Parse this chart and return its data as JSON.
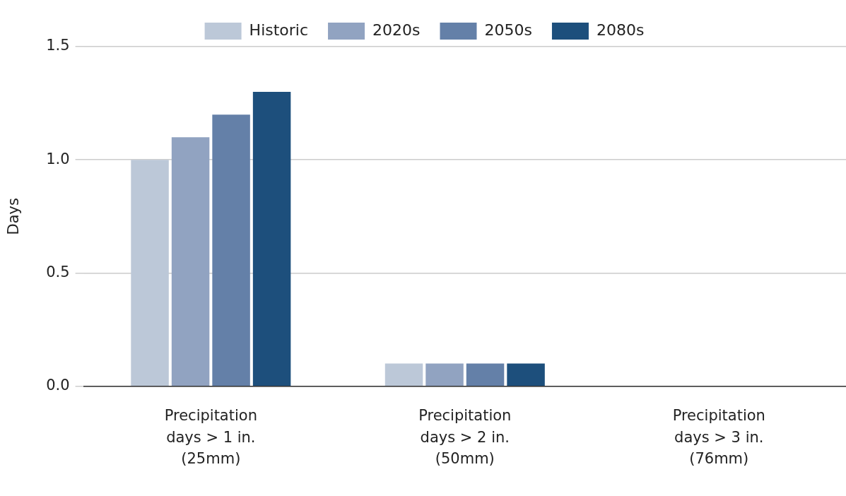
{
  "chart_data": {
    "type": "bar",
    "ylabel": "Days",
    "categories": [
      "Precipitation days > 1 in. (25mm)",
      "Precipitation days > 2 in. (50mm)",
      "Precipitation days > 3 in. (76mm)"
    ],
    "series": [
      {
        "name": "Historic",
        "color": "#bcc8d8",
        "values": [
          1.0,
          0.1,
          0
        ]
      },
      {
        "name": "2020s",
        "color": "#91a3c1",
        "values": [
          1.1,
          0.1,
          0
        ]
      },
      {
        "name": "2050s",
        "color": "#6480a8",
        "values": [
          1.2,
          0.1,
          0
        ]
      },
      {
        "name": "2080s",
        "color": "#1d4f7c",
        "values": [
          1.3,
          0.1,
          0
        ]
      }
    ],
    "ylim": [
      0,
      1.5
    ],
    "yticks": [
      {
        "value": 0,
        "label": "0.0"
      },
      {
        "value": 0.5,
        "label": "0.5"
      },
      {
        "value": 1,
        "label": "1.0"
      },
      {
        "value": 1.5,
        "label": "1.5"
      }
    ],
    "grid": "y",
    "legend": "top"
  }
}
